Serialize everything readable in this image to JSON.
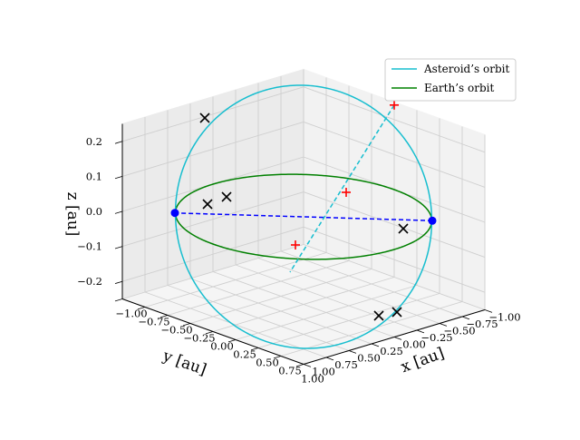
{
  "chart_data": {
    "type": "3d-line",
    "title": "",
    "axes": {
      "x": {
        "label": "x [au]",
        "range": [
          -1.0,
          1.0
        ],
        "ticks": [
          "−1.00",
          "−0.75",
          "−0.50",
          "−0.25",
          "0.00",
          "0.25",
          "0.50",
          "0.75",
          "1.00"
        ]
      },
      "y": {
        "label": "y [au]",
        "range": [
          -1.0,
          1.0
        ],
        "ticks": [
          "1.00",
          "0.75",
          "0.50",
          "0.25",
          "0.00",
          "−0.25",
          "−0.50",
          "−0.75",
          "−1.00"
        ]
      },
      "z": {
        "label": "z [au]",
        "range": [
          -0.25,
          0.25
        ],
        "ticks": [
          "0.2",
          "0.1",
          "0.0",
          "−0.1",
          "−0.2"
        ]
      }
    },
    "grid": true,
    "legend": {
      "placement": "top-right",
      "entries": [
        {
          "label": "Asteroid’s orbit",
          "color": "#17becf"
        },
        {
          "label": "Earth’s orbit",
          "color": "#008000"
        }
      ]
    },
    "series": [
      {
        "name": "Asteroid’s orbit",
        "kind": "orbit",
        "radius": 1.0,
        "inclination_deg": 15,
        "color": "#17becf"
      },
      {
        "name": "Earth’s orbit",
        "kind": "orbit",
        "radius": 1.0,
        "inclination_deg": 0,
        "color": "#008000"
      }
    ],
    "markers": {
      "blue_points": [
        [
          0.71,
          -0.71,
          0.0
        ],
        [
          -0.71,
          0.71,
          0.0
        ]
      ],
      "red_plus": [
        [
          -0.78,
          0.0,
          0.0
        ],
        [
          0.05,
          -0.95,
          0.25
        ],
        [
          0.71,
          -0.71,
          0.0
        ]
      ],
      "black_x_angles_deg": [
        3,
        72,
        160,
        165,
        200,
        212,
        230,
        355
      ]
    },
    "colors": {
      "asteroid": "#17becf",
      "earth": "#008000",
      "node_line": "#0000ff",
      "plus": "#ff0000",
      "cross": "#000000"
    }
  }
}
